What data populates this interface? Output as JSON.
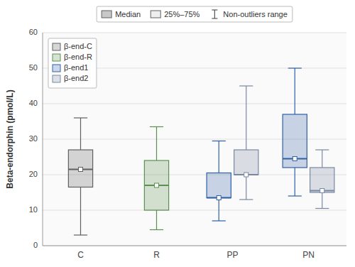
{
  "chart_data": {
    "type": "box",
    "y_label": "Beta-endorphin (pmol/L)",
    "categories": [
      "C",
      "R",
      "PP",
      "PN"
    ],
    "series": [
      {
        "name": "β-end-C",
        "color": "#606060",
        "values": [
          {
            "whislo": 3.0,
            "q1": 16.5,
            "med": 21.5,
            "mean": 21.5,
            "q3": 27.0,
            "whishi": 36.0
          },
          null,
          null,
          null
        ]
      },
      {
        "name": "β-end-R",
        "color": "#5a9050",
        "values": [
          null,
          {
            "whislo": 4.5,
            "q1": 10.0,
            "med": 17.0,
            "mean": 17.0,
            "q3": 24.0,
            "whishi": 33.5
          },
          null,
          null
        ]
      },
      {
        "name": "β-end1",
        "color": "#3060a8",
        "values": [
          null,
          null,
          {
            "whislo": 7.0,
            "q1": 13.5,
            "med": 13.5,
            "mean": 13.5,
            "q3": 20.5,
            "whishi": 29.5
          },
          {
            "whislo": 14.0,
            "q1": 22.0,
            "med": 24.5,
            "mean": 24.5,
            "q3": 37.0,
            "whishi": 50.0
          }
        ]
      },
      {
        "name": "β-end2",
        "color": "#7888a0",
        "values": [
          null,
          null,
          {
            "whislo": 13.0,
            "q1": 20.0,
            "med": 20.0,
            "mean": 20.0,
            "q3": 27.0,
            "whishi": 45.0
          },
          {
            "whislo": 10.5,
            "q1": 15.0,
            "med": 15.5,
            "mean": 15.5,
            "q3": 22.0,
            "whishi": 27.0
          }
        ]
      }
    ],
    "ylim": [
      0,
      60
    ],
    "yticks": [
      0,
      10,
      20,
      30,
      40,
      50,
      60
    ],
    "grid": true,
    "legend": "upper left",
    "box_legend_labels": {
      "median": "Median",
      "box": "25%–75%",
      "whiskers": "Non-outliers range"
    }
  }
}
